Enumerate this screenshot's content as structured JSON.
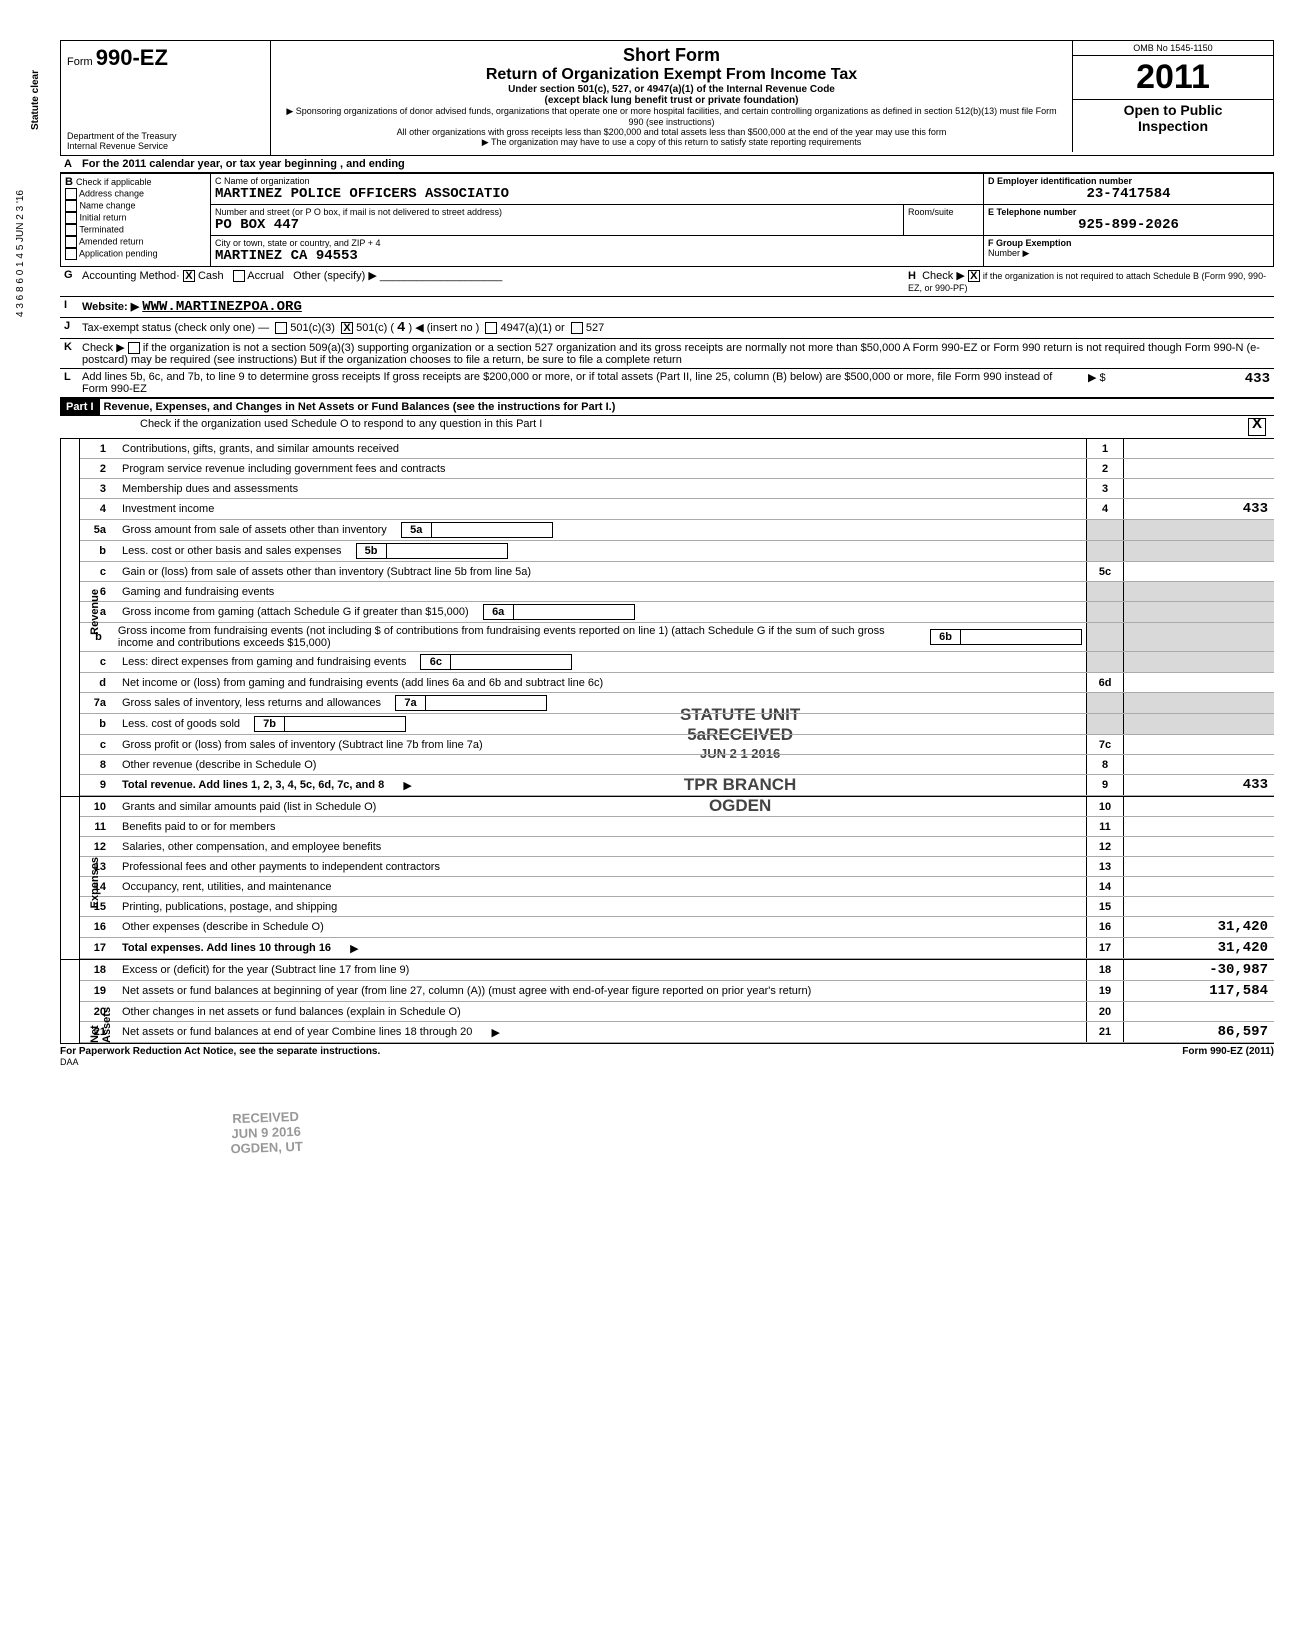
{
  "vertical_stamp_left": "Statute clear",
  "vertical_stamp_left2": "4 3 6 8 6 0 1 4 5  JUN 2 3 '16",
  "header": {
    "form_label": "Form",
    "form_no": "990-EZ",
    "dept1": "Department of the Treasury",
    "dept2": "Internal Revenue Service",
    "title_short": "Short Form",
    "title_main": "Return of Organization Exempt From Income Tax",
    "subtitle1": "Under section 501(c), 527, or 4947(a)(1) of the Internal Revenue Code",
    "subtitle2": "(except black lung benefit trust or private foundation)",
    "bullet1": "▶ Sponsoring organizations of donor advised funds, organizations that operate one or more hospital facilities, and certain controlling organizations as defined in section 512(b)(13) must file Form 990 (see instructions)",
    "bullet2": "All other organizations with gross receipts less than $200,000 and total assets less than $500,000 at the end of the year may use this form",
    "bullet3": "▶ The organization may have to use a copy of this return to satisfy state reporting requirements",
    "omb": "OMB No 1545-1150",
    "year": "2011",
    "open": "Open to Public",
    "inspection": "Inspection"
  },
  "lineA": "For the 2011 calendar year, or tax year beginning                        , and ending",
  "sectionB": {
    "label": "Check if applicable",
    "opts": [
      "Address change",
      "Name change",
      "Initial return",
      "Terminated",
      "Amended return",
      "Application pending"
    ]
  },
  "sectionC": {
    "label_name": "C  Name of organization",
    "name": "MARTINEZ POLICE OFFICERS ASSOCIATIO",
    "label_street": "Number and street (or P O  box, if mail is not delivered to street address)",
    "room_label": "Room/suite",
    "street": "PO BOX 447",
    "label_city": "City or town, state or country, and ZIP + 4",
    "city": "MARTINEZ                CA  94553"
  },
  "sectionD": {
    "label": "D  Employer identification number",
    "val": "23-7417584"
  },
  "sectionE": {
    "label": "E  Telephone number",
    "val": "925-899-2026"
  },
  "sectionF": {
    "label": "F  Group Exemption",
    "label2": "Number                 ▶"
  },
  "lineG": {
    "label": "Accounting Method·",
    "cash": "Cash",
    "accrual": "Accrual",
    "other": "Other (specify) ▶"
  },
  "lineH": {
    "text": "Check ▶",
    "text2": "if the organization is not required to attach Schedule B (Form 990, 990-EZ, or 990-PF)"
  },
  "lineI": {
    "label": "Website: ▶",
    "val": "WWW.MARTINEZPOA.ORG"
  },
  "lineJ": {
    "label": "Tax-exempt status (check only one) —",
    "o1": "501(c)(3)",
    "o2": "501(c) (",
    "o2b": "4",
    "o2c": ") ◀ (insert no )",
    "o3": "4947(a)(1) or",
    "o4": "527"
  },
  "lineK": {
    "label": "Check ▶",
    "text": "if the organization is not a section 509(a)(3) supporting organization or a section 527 organization and its gross receipts are normally not more than $50,000  A Form 990-EZ or Form 990 return is not required though Form 990-N (e-postcard) may be required (see instructions)  But if the organization chooses to file a return, be sure to file a complete return"
  },
  "lineL": {
    "text": "Add lines 5b, 6c, and 7b, to line 9 to determine gross receipts  If gross receipts are $200,000 or more, or if total assets (Part II, line 25, column (B) below) are $500,000 or more, file Form 990 instead of Form 990-EZ",
    "arrow": "▶  $",
    "val": "433"
  },
  "part1": {
    "hdr": "Part I",
    "title": "Revenue, Expenses, and Changes in Net Assets or Fund Balances (see the instructions for Part I.)",
    "checktext": "Check if the organization used Schedule O to respond to any question in this Part I",
    "checked": "X"
  },
  "stampA": {
    "l1": "STATUTE UNIT",
    "l2": "5aRECEIVED",
    "l3": "JUN 2 1 2016",
    "l4": "TPR BRANCH",
    "l5": "OGDEN"
  },
  "stampB": {
    "l1": "RECEIVED",
    "l2": "JUN  9  2016",
    "l3": "OGDEN, UT"
  },
  "revenue_label": "Revenue",
  "expenses_label": "Expenses",
  "netassets_label": "Net Assets",
  "lines": [
    {
      "n": "1",
      "t": "Contributions, gifts, grants, and similar amounts received",
      "rn": "1",
      "rv": ""
    },
    {
      "n": "2",
      "t": "Program service revenue including government fees and contracts",
      "rn": "2",
      "rv": ""
    },
    {
      "n": "3",
      "t": "Membership dues and assessments",
      "rn": "3",
      "rv": ""
    },
    {
      "n": "4",
      "t": "Investment income",
      "rn": "4",
      "rv": "433"
    },
    {
      "n": "5a",
      "t": "Gross amount from sale of assets other than inventory",
      "ib": "5a"
    },
    {
      "n": "b",
      "t": "Less. cost or other basis and sales expenses",
      "ib": "5b"
    },
    {
      "n": "c",
      "t": "Gain or (loss) from sale of assets other than inventory (Subtract line 5b from line 5a)",
      "rn": "5c",
      "rv": ""
    },
    {
      "n": "6",
      "t": "Gaming and fundraising events"
    },
    {
      "n": "a",
      "t": "Gross income from gaming (attach Schedule G if greater than $15,000)",
      "ib": "6a"
    },
    {
      "n": "b",
      "t": "Gross income from fundraising events (not including   $                         of contributions from fundraising events reported on line 1) (attach Schedule G if the sum of such gross income and contributions exceeds $15,000)",
      "ib": "6b"
    },
    {
      "n": "c",
      "t": "Less: direct expenses from gaming and fundraising events",
      "ib": "6c"
    },
    {
      "n": "d",
      "t": "Net income or (loss) from gaming and fundraising events (add lines 6a and 6b and subtract line 6c)",
      "rn": "6d",
      "rv": ""
    },
    {
      "n": "7a",
      "t": "Gross sales of inventory, less returns and allowances",
      "ib": "7a"
    },
    {
      "n": "b",
      "t": "Less. cost of goods sold",
      "ib": "7b"
    },
    {
      "n": "c",
      "t": "Gross profit or (loss) from sales of inventory (Subtract line 7b from line 7a)",
      "rn": "7c",
      "rv": ""
    },
    {
      "n": "8",
      "t": "Other revenue (describe in Schedule O)",
      "rn": "8",
      "rv": ""
    },
    {
      "n": "9",
      "t": "Total revenue. Add lines 1, 2, 3, 4, 5c, 6d, 7c, and 8",
      "rn": "9",
      "rv": "433",
      "b": true,
      "arrow": true
    }
  ],
  "exp": [
    {
      "n": "10",
      "t": "Grants and similar amounts paid (list in Schedule O)",
      "rn": "10",
      "rv": ""
    },
    {
      "n": "11",
      "t": "Benefits paid to or for members",
      "rn": "11",
      "rv": ""
    },
    {
      "n": "12",
      "t": "Salaries, other compensation, and employee benefits",
      "rn": "12",
      "rv": ""
    },
    {
      "n": "13",
      "t": "Professional fees and other payments to independent contractors",
      "rn": "13",
      "rv": ""
    },
    {
      "n": "14",
      "t": "Occupancy, rent, utilities, and maintenance",
      "rn": "14",
      "rv": ""
    },
    {
      "n": "15",
      "t": "Printing, publications, postage, and shipping",
      "rn": "15",
      "rv": ""
    },
    {
      "n": "16",
      "t": "Other expenses (describe in Schedule O)",
      "rn": "16",
      "rv": "31,420"
    },
    {
      "n": "17",
      "t": "Total expenses. Add lines 10 through 16",
      "rn": "17",
      "rv": "31,420",
      "b": true,
      "arrow": true
    }
  ],
  "net": [
    {
      "n": "18",
      "t": "Excess or (deficit) for the year (Subtract line 17 from line 9)",
      "rn": "18",
      "rv": "-30,987"
    },
    {
      "n": "19",
      "t": "Net assets or fund balances at beginning of year (from line 27, column (A)) (must agree with end-of-year figure reported on prior year's return)",
      "rn": "19",
      "rv": "117,584"
    },
    {
      "n": "20",
      "t": "Other changes in net assets or fund balances (explain in Schedule O)",
      "rn": "20",
      "rv": ""
    },
    {
      "n": "21",
      "t": "Net assets or fund balances at end of year  Combine lines 18 through 20",
      "rn": "21",
      "rv": "86,597",
      "arrow": true
    }
  ],
  "footer": {
    "left": "For Paperwork Reduction Act Notice, see the separate instructions.",
    "mid": "DAA",
    "right": "Form 990-EZ (2011)"
  }
}
